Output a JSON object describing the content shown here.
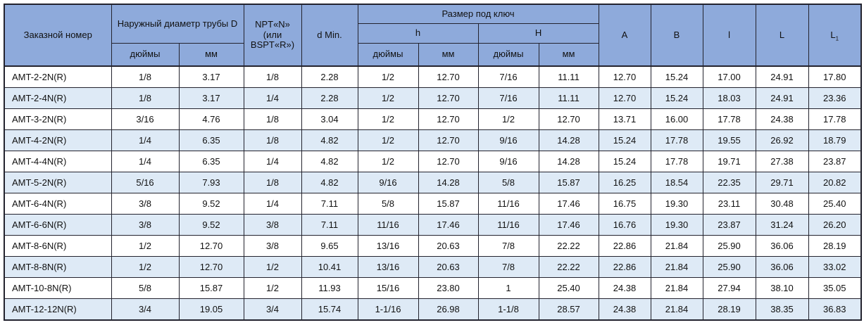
{
  "table": {
    "header": {
      "order_number": "Заказной номер",
      "outer_diameter": "Наружный диаметр трубы D",
      "npt_line1": "NPT«N»",
      "npt_line2": "(или",
      "npt_line3": "BSPT«R»)",
      "d_min": "d Min.",
      "wrench_size": "Размер под ключ",
      "h_lower": "h",
      "h_upper": "H",
      "inches": "дюймы",
      "mm": "мм",
      "col_a": "A",
      "col_b": "B",
      "col_l_lower": "l",
      "col_l": "L",
      "col_l1_base": "L",
      "col_l1_sub": "1"
    },
    "rows": [
      [
        "AMT-2-2N(R)",
        "1/8",
        "3.17",
        "1/8",
        "2.28",
        "1/2",
        "12.70",
        "7/16",
        "11.11",
        "12.70",
        "15.24",
        "17.00",
        "24.91",
        "17.80"
      ],
      [
        "AMT-2-4N(R)",
        "1/8",
        "3.17",
        "1/4",
        "2.28",
        "1/2",
        "12.70",
        "7/16",
        "11.11",
        "12.70",
        "15.24",
        "18.03",
        "24.91",
        "23.36"
      ],
      [
        "AMT-3-2N(R)",
        "3/16",
        "4.76",
        "1/8",
        "3.04",
        "1/2",
        "12.70",
        "1/2",
        "12.70",
        "13.71",
        "16.00",
        "17.78",
        "24.38",
        "17.78"
      ],
      [
        "AMT-4-2N(R)",
        "1/4",
        "6.35",
        "1/8",
        "4.82",
        "1/2",
        "12.70",
        "9/16",
        "14.28",
        "15.24",
        "17.78",
        "19.55",
        "26.92",
        "18.79"
      ],
      [
        "AMT-4-4N(R)",
        "1/4",
        "6.35",
        "1/4",
        "4.82",
        "1/2",
        "12.70",
        "9/16",
        "14.28",
        "15.24",
        "17.78",
        "19.71",
        "27.38",
        "23.87"
      ],
      [
        "AMT-5-2N(R)",
        "5/16",
        "7.93",
        "1/8",
        "4.82",
        "9/16",
        "14.28",
        "5/8",
        "15.87",
        "16.25",
        "18.54",
        "22.35",
        "29.71",
        "20.82"
      ],
      [
        "AMT-6-4N(R)",
        "3/8",
        "9.52",
        "1/4",
        "7.11",
        "5/8",
        "15.87",
        "11/16",
        "17.46",
        "16.75",
        "19.30",
        "23.11",
        "30.48",
        "25.40"
      ],
      [
        "AMT-6-6N(R)",
        "3/8",
        "9.52",
        "3/8",
        "7.11",
        "11/16",
        "17.46",
        "11/16",
        "17.46",
        "16.76",
        "19.30",
        "23.87",
        "31.24",
        "26.20"
      ],
      [
        "AMT-8-6N(R)",
        "1/2",
        "12.70",
        "3/8",
        "9.65",
        "13/16",
        "20.63",
        "7/8",
        "22.22",
        "22.86",
        "21.84",
        "25.90",
        "36.06",
        "28.19"
      ],
      [
        "AMT-8-8N(R)",
        "1/2",
        "12.70",
        "1/2",
        "10.41",
        "13/16",
        "20.63",
        "7/8",
        "22.22",
        "22.86",
        "21.84",
        "25.90",
        "36.06",
        "33.02"
      ],
      [
        "AMT-10-8N(R)",
        "5/8",
        "15.87",
        "1/2",
        "11.93",
        "15/16",
        "23.80",
        "1",
        "25.40",
        "24.38",
        "21.84",
        "27.94",
        "38.10",
        "35.05"
      ],
      [
        "AMT-12-12N(R)",
        "3/4",
        "19.05",
        "3/4",
        "15.74",
        "1-1/16",
        "26.98",
        "1-1/8",
        "28.57",
        "24.38",
        "21.84",
        "28.19",
        "38.35",
        "36.83"
      ]
    ]
  },
  "colors": {
    "header_bg": "#8EAADB",
    "alt_row_bg": "#DEEAF6",
    "row_bg": "#FFFFFF",
    "border": "#23232e",
    "text": "#111111"
  }
}
